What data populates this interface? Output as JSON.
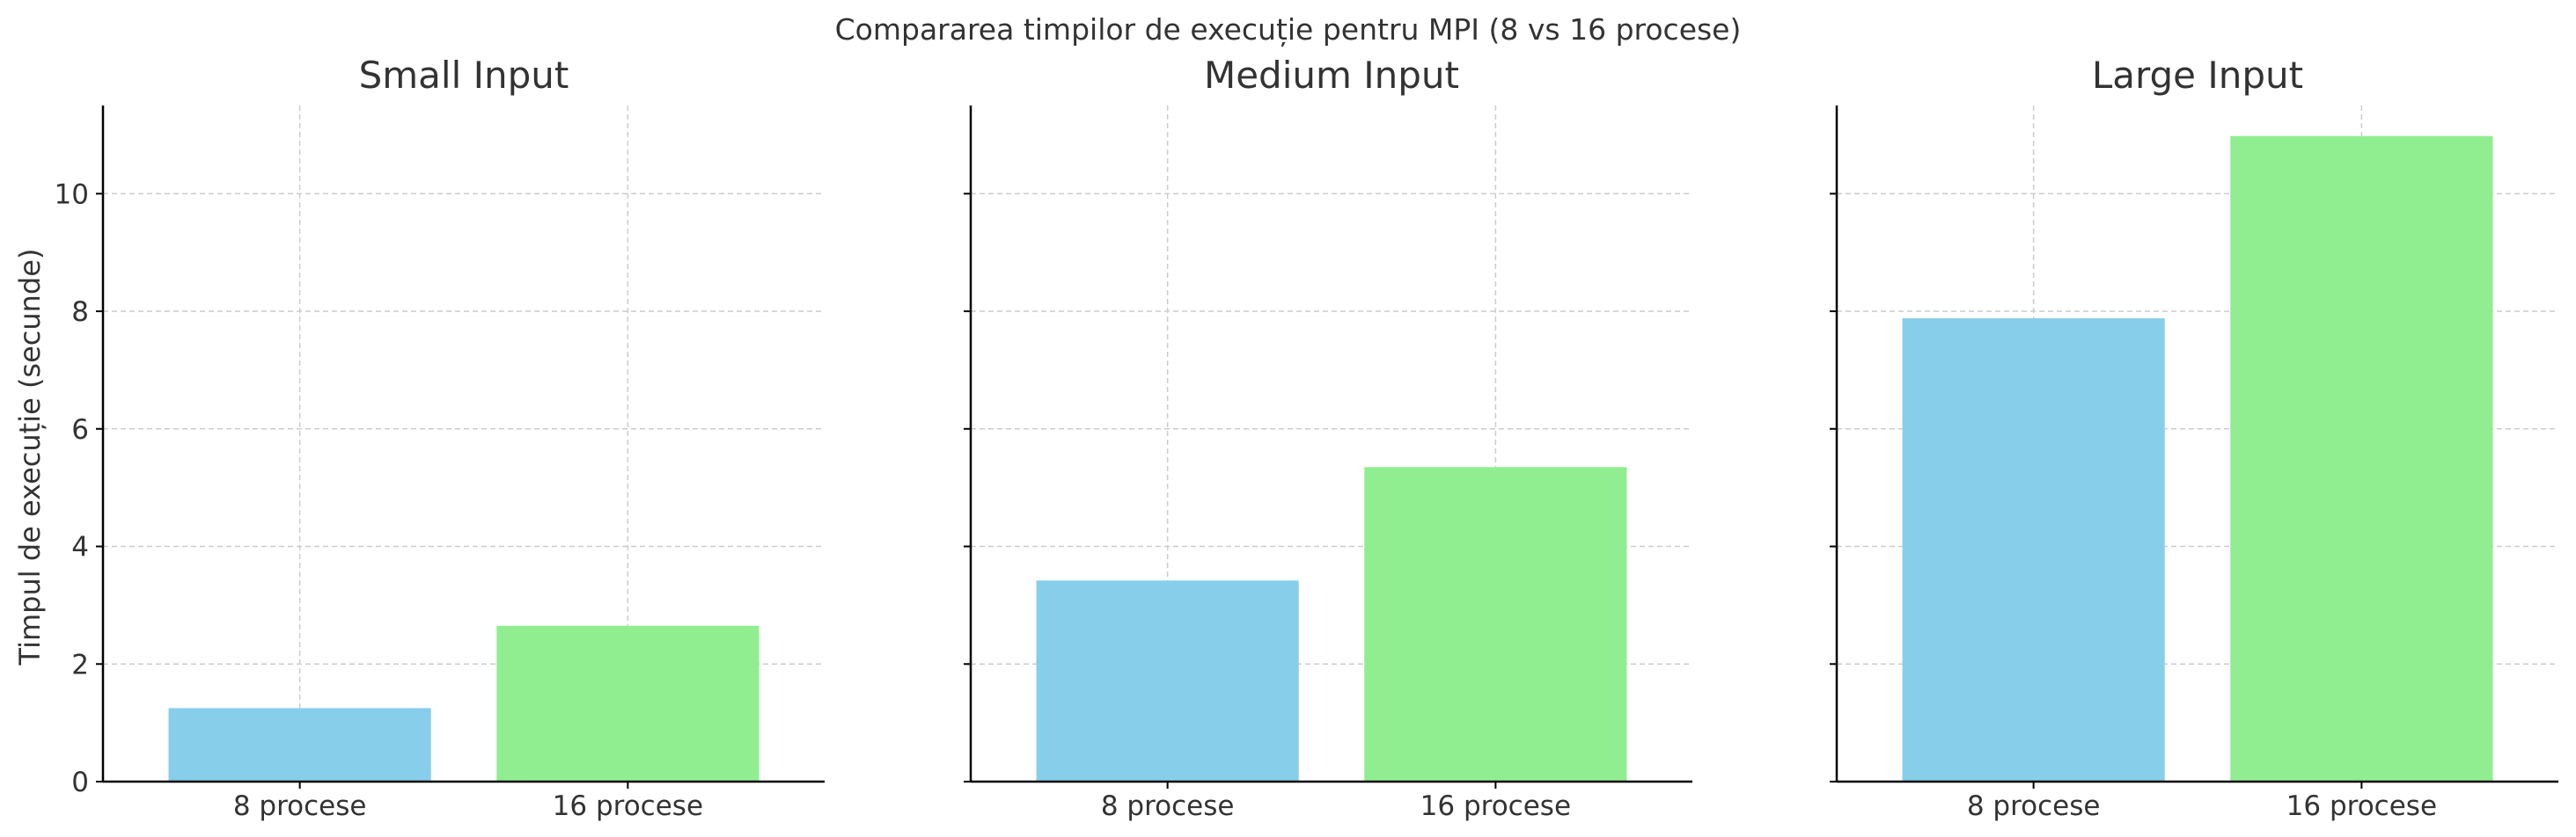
{
  "figure": {
    "suptitle": "Compararea timpilor de execuție pentru MPI (8 vs 16 procese)",
    "ylabel": "Timpul de execuție (secunde)"
  },
  "colors": {
    "bar_8": "#87CEEB",
    "bar_16": "#90EE90",
    "grid": "#cccccc",
    "axis": "#000000",
    "text": "#333333"
  },
  "chart_data": [
    {
      "type": "bar",
      "title": "Small Input",
      "categories": [
        "8 procese",
        "16 procese"
      ],
      "values": [
        1.25,
        2.65
      ],
      "ylim": [
        0,
        11.5
      ],
      "yticks": [
        0,
        2,
        4,
        6,
        8,
        10
      ],
      "grid": true,
      "sharey": true
    },
    {
      "type": "bar",
      "title": "Medium Input",
      "categories": [
        "8 procese",
        "16 procese"
      ],
      "values": [
        3.42,
        5.35
      ],
      "ylim": [
        0,
        11.5
      ],
      "yticks": [
        0,
        2,
        4,
        6,
        8,
        10
      ],
      "grid": true,
      "sharey": true
    },
    {
      "type": "bar",
      "title": "Large Input",
      "categories": [
        "8 procese",
        "16 procese"
      ],
      "values": [
        7.88,
        10.98
      ],
      "ylim": [
        0,
        11.5
      ],
      "yticks": [
        0,
        2,
        4,
        6,
        8,
        10
      ],
      "grid": true,
      "sharey": true
    }
  ]
}
